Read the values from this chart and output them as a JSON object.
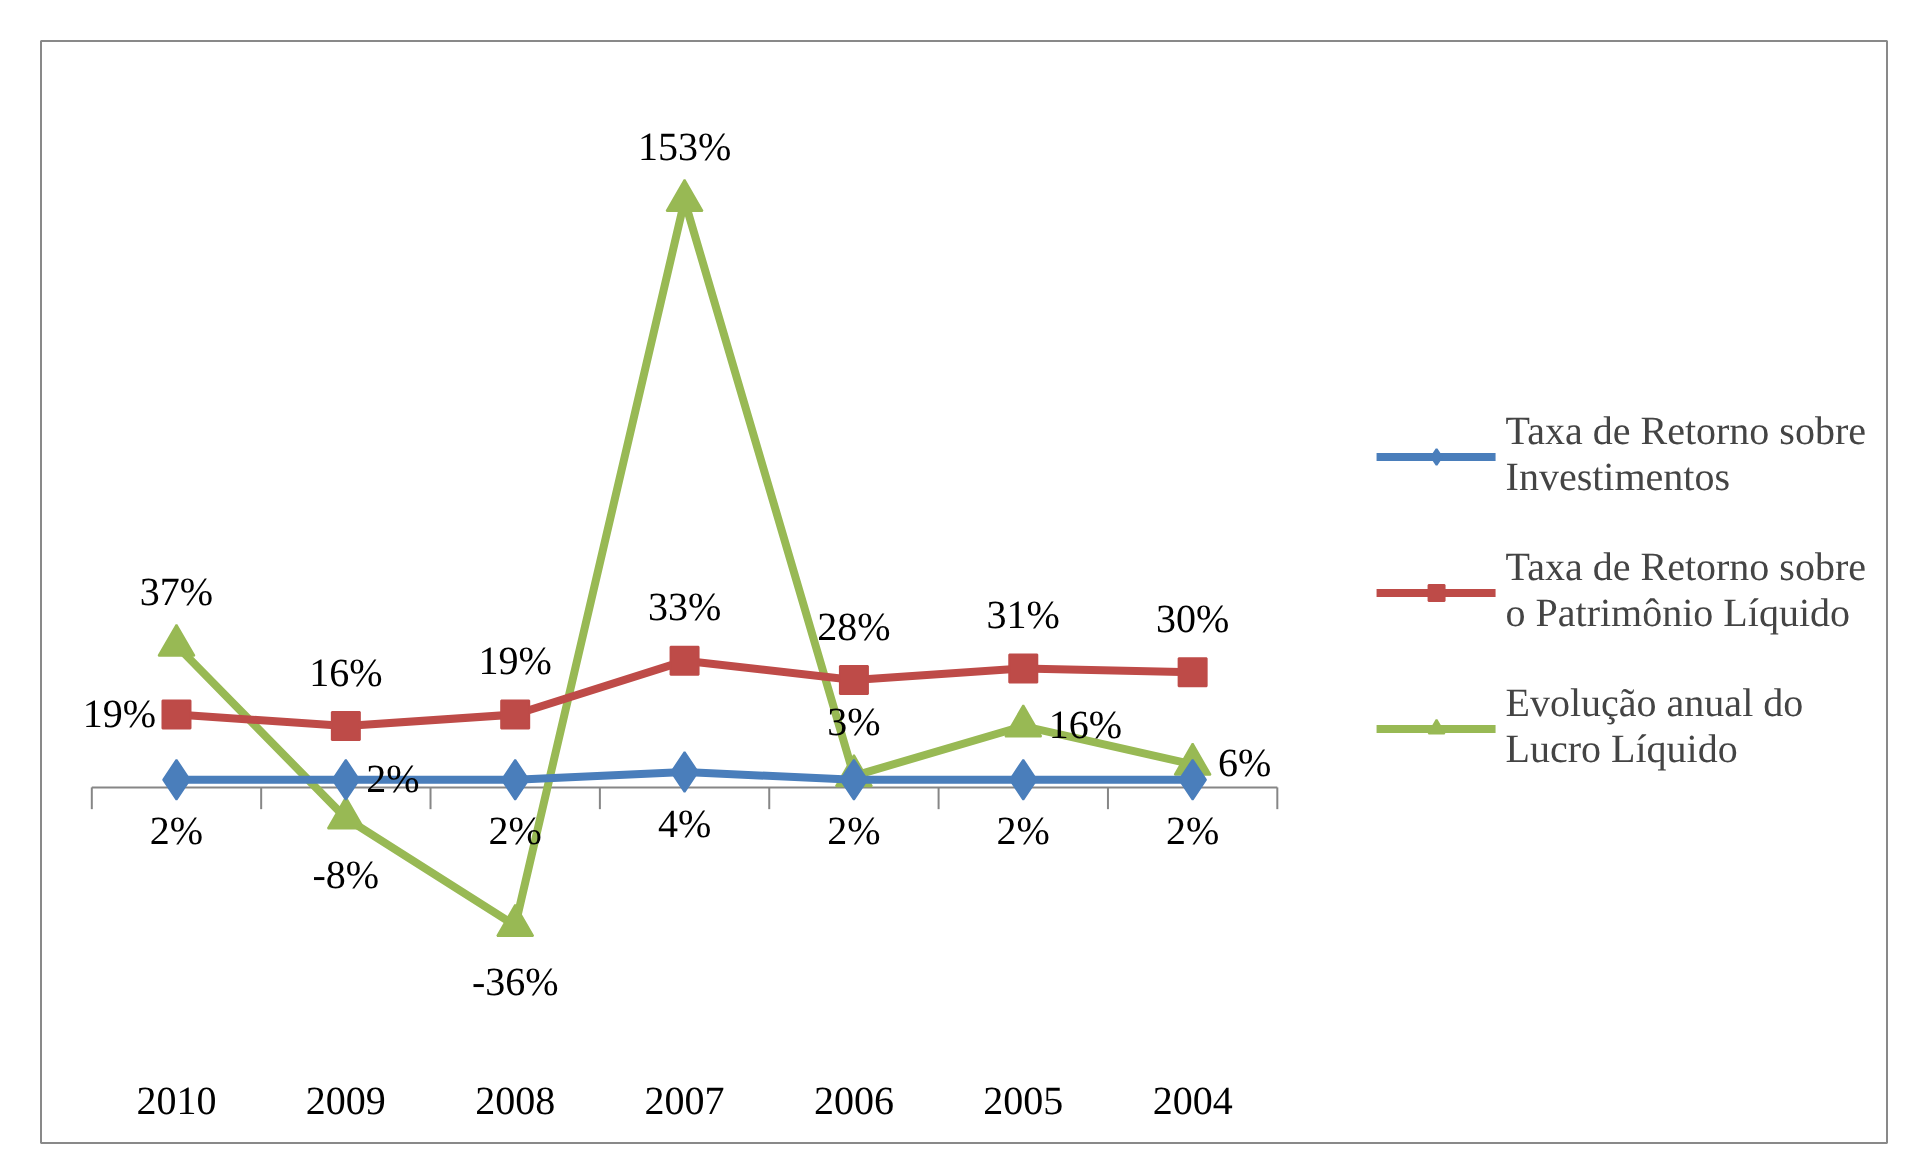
{
  "chart_data": {
    "type": "line",
    "categories": [
      "2010",
      "2009",
      "2008",
      "2007",
      "2006",
      "2005",
      "2004"
    ],
    "series": [
      {
        "name": "Taxa de Retorno sobre Investimentos",
        "color": "#4a7ebb",
        "marker": "diamond",
        "values": [
          2,
          2,
          2,
          4,
          2,
          2,
          2
        ],
        "value_labels": [
          "2%",
          "2%",
          "2%",
          "4%",
          "2%",
          "2%",
          "2%"
        ]
      },
      {
        "name": "Taxa de Retorno sobre o Patrimônio Líquido",
        "color": "#be4b48",
        "marker": "square",
        "values": [
          19,
          16,
          19,
          33,
          28,
          31,
          30
        ],
        "value_labels": [
          "19%",
          "16%",
          "19%",
          "33%",
          "28%",
          "31%",
          "30%"
        ]
      },
      {
        "name": "Evolução anual do Lucro Líquido",
        "color": "#98b954",
        "marker": "triangle",
        "values": [
          37,
          -8,
          -36,
          153,
          3,
          16,
          6
        ],
        "value_labels": [
          "37%",
          "-8%",
          "-36%",
          "153%",
          "3%",
          "16%",
          "6%"
        ]
      }
    ],
    "legend": "right",
    "grid": false
  }
}
